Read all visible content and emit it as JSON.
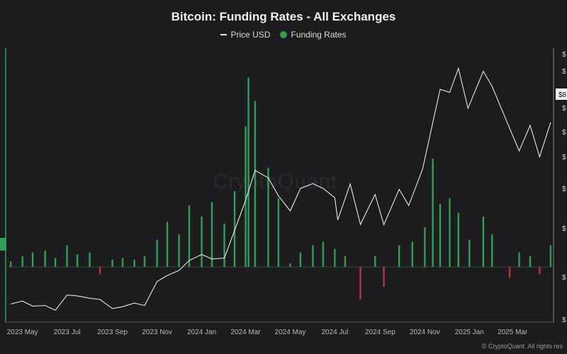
{
  "chart_data": {
    "type": "bar+line",
    "title": "Bitcoin: Funding Rates - All Exchanges",
    "legend": [
      "Price USD",
      "Funding Rates"
    ],
    "legend_position": "top-center",
    "x_ticks": [
      "2023 May",
      "2023 Jul",
      "2023 Sep",
      "2023 Nov",
      "2024 Jan",
      "2024 Mar",
      "2024 May",
      "2024 Jul",
      "2024 Sep",
      "2024 Nov",
      "2025 Jan",
      "2025 Mar"
    ],
    "y_ticks_right": [
      "$",
      "$",
      "$",
      "$",
      "$",
      "$",
      "$",
      "$",
      "$"
    ],
    "current_price_label": "$8",
    "grid": false,
    "series": [
      {
        "name": "Price USD",
        "kind": "line",
        "color": "#e8e8e8",
        "points": [
          [
            "2023-04-15",
            27500
          ],
          [
            "2023-05-01",
            28500
          ],
          [
            "2023-05-15",
            26800
          ],
          [
            "2023-06-01",
            27000
          ],
          [
            "2023-06-15",
            25400
          ],
          [
            "2023-07-01",
            30500
          ],
          [
            "2023-07-15",
            30200
          ],
          [
            "2023-08-01",
            29400
          ],
          [
            "2023-08-15",
            29000
          ],
          [
            "2023-09-01",
            26000
          ],
          [
            "2023-09-15",
            26600
          ],
          [
            "2023-10-01",
            27800
          ],
          [
            "2023-10-15",
            27000
          ],
          [
            "2023-11-01",
            35000
          ],
          [
            "2023-11-15",
            37000
          ],
          [
            "2023-12-01",
            38700
          ],
          [
            "2023-12-15",
            42000
          ],
          [
            "2024-01-01",
            44000
          ],
          [
            "2024-01-15",
            42500
          ],
          [
            "2024-02-01",
            42800
          ],
          [
            "2024-02-15",
            52000
          ],
          [
            "2024-03-01",
            62000
          ],
          [
            "2024-03-14",
            72000
          ],
          [
            "2024-04-01",
            69500
          ],
          [
            "2024-04-15",
            63500
          ],
          [
            "2024-05-01",
            58500
          ],
          [
            "2024-05-15",
            66000
          ],
          [
            "2024-06-01",
            67600
          ],
          [
            "2024-06-15",
            66000
          ],
          [
            "2024-07-01",
            62900
          ],
          [
            "2024-07-05",
            55500
          ],
          [
            "2024-07-22",
            67500
          ],
          [
            "2024-08-05",
            54000
          ],
          [
            "2024-08-25",
            64000
          ],
          [
            "2024-09-06",
            53900
          ],
          [
            "2024-09-27",
            65700
          ],
          [
            "2024-10-10",
            60300
          ],
          [
            "2024-10-29",
            72500
          ],
          [
            "2024-11-12",
            88000
          ],
          [
            "2024-11-22",
            99000
          ],
          [
            "2024-12-05",
            98000
          ],
          [
            "2024-12-17",
            106000
          ],
          [
            "2024-12-30",
            92700
          ],
          [
            "2025-01-20",
            105000
          ],
          [
            "2025-02-01",
            100000
          ],
          [
            "2025-02-25",
            86000
          ],
          [
            "2025-03-10",
            78500
          ],
          [
            "2025-03-25",
            87000
          ],
          [
            "2025-04-07",
            76500
          ],
          [
            "2025-04-22",
            88000
          ]
        ]
      },
      {
        "name": "Funding Rates",
        "kind": "bar",
        "positive_color": "#2f9e57",
        "negative_color": "#c0304a",
        "points": [
          [
            "2023-04-15",
            0.003
          ],
          [
            "2023-05-01",
            0.006
          ],
          [
            "2023-05-15",
            0.008
          ],
          [
            "2023-06-01",
            0.009
          ],
          [
            "2023-06-15",
            0.005
          ],
          [
            "2023-07-01",
            0.012
          ],
          [
            "2023-07-15",
            0.007
          ],
          [
            "2023-08-01",
            0.008
          ],
          [
            "2023-08-15",
            -0.004
          ],
          [
            "2023-09-01",
            0.004
          ],
          [
            "2023-09-15",
            0.005
          ],
          [
            "2023-10-01",
            0.004
          ],
          [
            "2023-10-15",
            0.006
          ],
          [
            "2023-11-01",
            0.015
          ],
          [
            "2023-11-15",
            0.025
          ],
          [
            "2023-12-01",
            0.018
          ],
          [
            "2023-12-15",
            0.034
          ],
          [
            "2024-01-01",
            0.028
          ],
          [
            "2024-01-15",
            0.036
          ],
          [
            "2024-02-01",
            0.024
          ],
          [
            "2024-02-15",
            0.042
          ],
          [
            "2024-03-01",
            0.078
          ],
          [
            "2024-03-05",
            0.105
          ],
          [
            "2024-03-14",
            0.092
          ],
          [
            "2024-04-01",
            0.055
          ],
          [
            "2024-04-15",
            0.038
          ],
          [
            "2024-05-01",
            0.002
          ],
          [
            "2024-05-15",
            0.008
          ],
          [
            "2024-06-01",
            0.012
          ],
          [
            "2024-06-15",
            0.014
          ],
          [
            "2024-07-01",
            0.01
          ],
          [
            "2024-07-15",
            0.006
          ],
          [
            "2024-08-05",
            -0.018
          ],
          [
            "2024-08-25",
            0.006
          ],
          [
            "2024-09-06",
            -0.011
          ],
          [
            "2024-09-27",
            0.012
          ],
          [
            "2024-10-15",
            0.014
          ],
          [
            "2024-11-01",
            0.022
          ],
          [
            "2024-11-12",
            0.06
          ],
          [
            "2024-11-22",
            0.035
          ],
          [
            "2024-12-05",
            0.038
          ],
          [
            "2024-12-17",
            0.03
          ],
          [
            "2025-01-01",
            0.015
          ],
          [
            "2025-01-20",
            0.028
          ],
          [
            "2025-02-01",
            0.018
          ],
          [
            "2025-02-25",
            -0.006
          ],
          [
            "2025-03-10",
            0.008
          ],
          [
            "2025-03-25",
            0.006
          ],
          [
            "2025-04-07",
            -0.004
          ],
          [
            "2025-04-22",
            0.012
          ]
        ]
      }
    ]
  },
  "watermark": "CryptoQuant",
  "credit": "© CryptoQuant. All rights res"
}
